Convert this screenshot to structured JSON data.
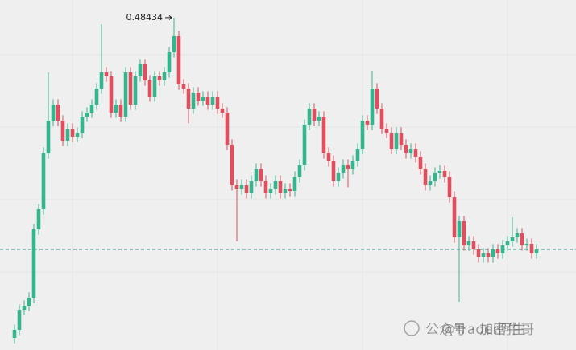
{
  "chart_data": {
    "type": "candlestick",
    "up_color": "#35b58e",
    "down_color": "#df4f5d",
    "ylim": [
      0.2365,
      0.4975
    ],
    "open": [
      0.2455,
      0.2515,
      0.2665,
      0.2695,
      0.2755,
      0.3265,
      0.3415,
      0.3835,
      0.4075,
      0.4195,
      0.4075,
      0.3925,
      0.4015,
      0.3955,
      0.3985,
      0.4105,
      0.4135,
      0.4195,
      0.4315,
      0.4435,
      0.4405,
      0.4135,
      0.4195,
      0.4105,
      0.4435,
      0.4195,
      0.4405,
      0.4495,
      0.4375,
      0.4255,
      0.4405,
      0.4375,
      0.4435,
      0.4585,
      0.4705,
      0.4345,
      0.4315,
      0.4165,
      0.4285,
      0.4225,
      0.4255,
      0.4195,
      0.4255,
      0.4165,
      0.4135,
      0.3895,
      0.3595,
      0.3565,
      0.3595,
      0.3535,
      0.3625,
      0.3715,
      0.3625,
      0.3535,
      0.3565,
      0.3625,
      0.3535,
      0.3565,
      0.3547,
      0.3655,
      0.3745,
      0.4045,
      0.4165,
      0.4075,
      0.4105,
      0.3835,
      0.3775,
      0.3625,
      0.3685,
      0.3745,
      0.3715,
      0.3775,
      0.3865,
      0.4075,
      0.4045,
      0.4315,
      0.4165,
      0.4015,
      0.3985,
      0.3865,
      0.3985,
      0.3895,
      0.3835,
      0.3865,
      0.3805,
      0.3715,
      0.3595,
      0.3625,
      0.3685,
      0.3703,
      0.3655,
      0.3505,
      0.3205,
      0.3325,
      0.3145,
      0.3175,
      0.3115,
      0.3055,
      0.3085,
      0.3055,
      0.3115,
      0.3085,
      0.3145,
      0.3175,
      0.3205,
      0.3235,
      0.3145,
      0.3157,
      0.3085
    ],
    "high": [
      0.2555,
      0.2705,
      0.2735,
      0.2795,
      0.3305,
      0.3455,
      0.3875,
      0.4435,
      0.4235,
      0.4235,
      0.4115,
      0.4055,
      0.4055,
      0.4025,
      0.4145,
      0.4175,
      0.4235,
      0.4355,
      0.4795,
      0.4475,
      0.4445,
      0.4235,
      0.4235,
      0.4475,
      0.4475,
      0.4445,
      0.4535,
      0.4535,
      0.4415,
      0.4445,
      0.4445,
      0.4475,
      0.4625,
      0.48434,
      0.4745,
      0.4385,
      0.4355,
      0.4325,
      0.4325,
      0.4295,
      0.4295,
      0.4295,
      0.4295,
      0.4205,
      0.4175,
      0.3935,
      0.3635,
      0.3635,
      0.3635,
      0.3665,
      0.3755,
      0.3755,
      0.3665,
      0.3605,
      0.3665,
      0.3665,
      0.3605,
      0.3605,
      0.3695,
      0.3785,
      0.4085,
      0.4205,
      0.4205,
      0.4145,
      0.4145,
      0.3875,
      0.3815,
      0.3725,
      0.3785,
      0.3785,
      0.3815,
      0.3905,
      0.4115,
      0.4115,
      0.4447,
      0.4355,
      0.4205,
      0.4055,
      0.4025,
      0.4025,
      0.4025,
      0.3935,
      0.3905,
      0.3905,
      0.3845,
      0.3755,
      0.3665,
      0.3725,
      0.3745,
      0.3743,
      0.3695,
      0.3545,
      0.3365,
      0.3365,
      0.3215,
      0.3215,
      0.3155,
      0.3125,
      0.3125,
      0.3155,
      0.3155,
      0.3185,
      0.3215,
      0.3355,
      0.3275,
      0.3275,
      0.3197,
      0.3197,
      0.3155
    ],
    "low": [
      0.2415,
      0.2475,
      0.2625,
      0.2655,
      0.2715,
      0.3225,
      0.3375,
      0.3795,
      0.4035,
      0.4035,
      0.3885,
      0.3885,
      0.3915,
      0.3915,
      0.3945,
      0.4065,
      0.4095,
      0.4155,
      0.4275,
      0.4365,
      0.4095,
      0.4095,
      0.4065,
      0.4065,
      0.4155,
      0.4155,
      0.4365,
      0.4335,
      0.4215,
      0.4215,
      0.4335,
      0.4335,
      0.4395,
      0.4545,
      0.4305,
      0.4275,
      0.4055,
      0.4125,
      0.4185,
      0.4185,
      0.4155,
      0.4155,
      0.4125,
      0.4095,
      0.3855,
      0.3555,
      0.3175,
      0.3525,
      0.3495,
      0.3495,
      0.3585,
      0.3585,
      0.3495,
      0.3495,
      0.3525,
      0.3495,
      0.3495,
      0.3507,
      0.3507,
      0.3615,
      0.3705,
      0.4005,
      0.4035,
      0.4035,
      0.3795,
      0.3735,
      0.3585,
      0.3585,
      0.3645,
      0.3575,
      0.3675,
      0.3735,
      0.3825,
      0.4005,
      0.4005,
      0.4125,
      0.3975,
      0.3945,
      0.3825,
      0.3825,
      0.3855,
      0.3795,
      0.3795,
      0.3765,
      0.3675,
      0.3555,
      0.3555,
      0.3585,
      0.3645,
      0.3615,
      0.3465,
      0.3165,
      0.2725,
      0.3105,
      0.3105,
      0.3075,
      0.3015,
      0.3015,
      0.3015,
      0.3015,
      0.3045,
      0.3045,
      0.3105,
      0.3135,
      0.3165,
      0.3105,
      0.3105,
      0.3045,
      0.3045
    ],
    "close": [
      0.2515,
      0.2665,
      0.2695,
      0.2755,
      0.3265,
      0.3415,
      0.3835,
      0.4075,
      0.4195,
      0.4075,
      0.3925,
      0.4015,
      0.3955,
      0.3985,
      0.4105,
      0.4135,
      0.4195,
      0.4315,
      0.4435,
      0.4405,
      0.4135,
      0.4195,
      0.4105,
      0.4435,
      0.4195,
      0.4405,
      0.4495,
      0.4375,
      0.4255,
      0.4405,
      0.4375,
      0.4435,
      0.4585,
      0.4705,
      0.4345,
      0.4315,
      0.4165,
      0.4285,
      0.4225,
      0.4255,
      0.4195,
      0.4255,
      0.4165,
      0.4135,
      0.3895,
      0.3595,
      0.3565,
      0.3595,
      0.3535,
      0.3625,
      0.3715,
      0.3625,
      0.3535,
      0.3565,
      0.3625,
      0.3535,
      0.3565,
      0.3547,
      0.3655,
      0.3745,
      0.4045,
      0.4165,
      0.4075,
      0.4105,
      0.3835,
      0.3775,
      0.3625,
      0.3685,
      0.3745,
      0.3715,
      0.3775,
      0.3865,
      0.4075,
      0.4045,
      0.4315,
      0.4165,
      0.4015,
      0.3985,
      0.3865,
      0.3985,
      0.3895,
      0.3835,
      0.3865,
      0.3805,
      0.3715,
      0.3595,
      0.3625,
      0.3685,
      0.3703,
      0.3655,
      0.3505,
      0.3205,
      0.3325,
      0.3145,
      0.3175,
      0.3115,
      0.3055,
      0.3085,
      0.3055,
      0.3115,
      0.3085,
      0.3145,
      0.3175,
      0.3205,
      0.3235,
      0.3145,
      0.3157,
      0.3085,
      0.3115
    ],
    "last_price": 0.3115,
    "last_price_color": "#2a9d8a",
    "high_marker_index": 33,
    "watermark": [
      "公众号 · 加密牛哥",
      "@Trader阿生"
    ]
  }
}
